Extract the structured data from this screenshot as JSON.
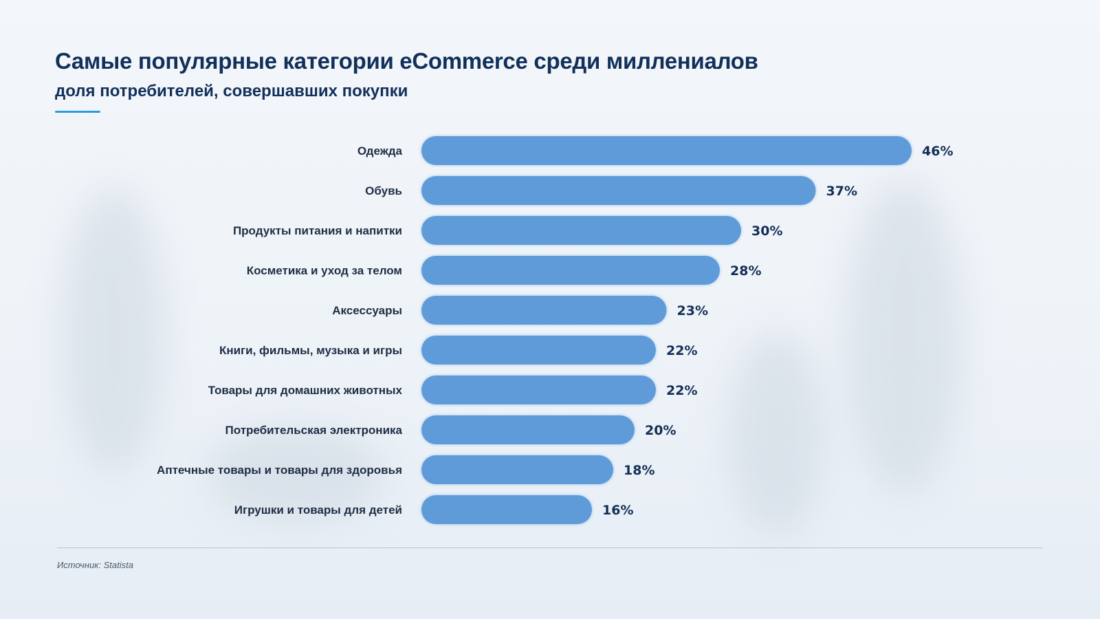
{
  "header": {
    "title": "Самые популярные категории eCommerce среди миллениалов",
    "subtitle": "доля потребителей, совершавших покупки"
  },
  "footer": {
    "source": "Источник: Statista"
  },
  "colors": {
    "bar": "#5e9bd8",
    "bar_glow": "#9cc4ee",
    "title": "#11305a",
    "accent": "#2a9be0"
  },
  "chart_data": {
    "type": "bar",
    "orientation": "horizontal",
    "title": "Самые популярные категории eCommerce среди миллениалов",
    "subtitle": "доля потребителей, совершавших покупки",
    "categories": [
      "Одежда",
      "Обувь",
      "Продукты питания и напитки",
      "Косметика и уход за телом",
      "Аксессуары",
      "Книги, фильмы, музыка и игры",
      "Товары для домашних животных",
      "Потребительская электроника",
      "Аптечные товары и товары для здоровья",
      "Игрушки и товары для детей"
    ],
    "values": [
      46,
      37,
      30,
      28,
      23,
      22,
      22,
      20,
      18,
      16
    ],
    "value_labels": [
      "46%",
      "37%",
      "30%",
      "28%",
      "23%",
      "22%",
      "22%",
      "20%",
      "18%",
      "16%"
    ],
    "unit": "%",
    "xlabel": "",
    "ylabel": "",
    "grid": false,
    "legend": "none"
  }
}
